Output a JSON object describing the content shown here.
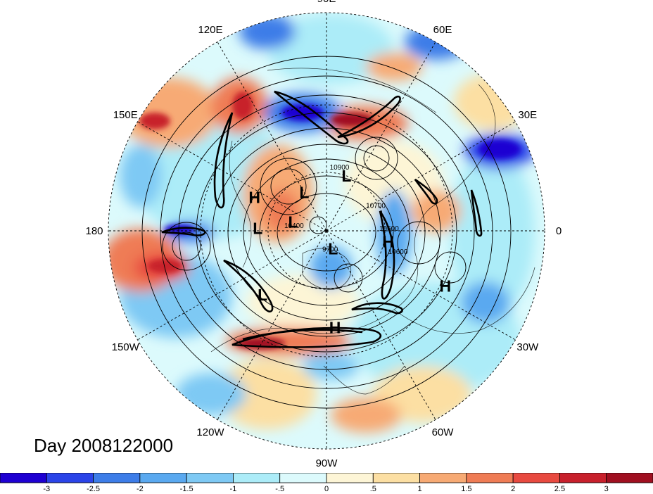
{
  "longitude_labels": [
    {
      "text": "90E",
      "deg": 90
    },
    {
      "text": "60E",
      "deg": 60
    },
    {
      "text": "30E",
      "deg": 30
    },
    {
      "text": "0",
      "deg": 0
    },
    {
      "text": "30W",
      "deg": -30
    },
    {
      "text": "60W",
      "deg": -60
    },
    {
      "text": "90W",
      "deg": -90
    },
    {
      "text": "120W",
      "deg": -120
    },
    {
      "text": "150W",
      "deg": -150
    },
    {
      "text": "180",
      "deg": 180
    },
    {
      "text": "150E",
      "deg": 150
    },
    {
      "text": "120E",
      "deg": 120
    }
  ],
  "pressure_centers": [
    {
      "type": "H",
      "label": "H",
      "lon": 155,
      "lat": 50
    },
    {
      "type": "L",
      "label": "L",
      "lon": 120,
      "lat": 67
    },
    {
      "type": "L",
      "label": "L",
      "lon": 70,
      "lat": 60
    },
    {
      "type": "L",
      "label": "L",
      "lon": 178,
      "lat": 55
    },
    {
      "type": "L",
      "label": "L",
      "lon": 165,
      "lat": 72
    },
    {
      "type": "H",
      "label": "H",
      "lon": -10,
      "lat": 58
    },
    {
      "type": "L",
      "label": "L",
      "lon": -70,
      "lat": 80
    },
    {
      "type": "L",
      "label": "L",
      "lon": -135,
      "lat": 45
    },
    {
      "type": "H",
      "label": "H",
      "lon": -25,
      "lat": 28
    },
    {
      "type": "H",
      "label": "H",
      "lon": -85,
      "lat": 42
    }
  ],
  "contour_labels": [
    {
      "text": "10900",
      "lon": 78,
      "lat": 58
    },
    {
      "text": "10700",
      "lon": 25,
      "lat": 62
    },
    {
      "text": "10600",
      "lon": 0,
      "lat": 58
    },
    {
      "text": "10600",
      "lon": -18,
      "lat": 52
    },
    {
      "text": "10400",
      "lon": 175,
      "lat": 73
    },
    {
      "text": "9700",
      "lon": -80,
      "lat": 79
    }
  ],
  "day_label": "Day 2008122000",
  "colorbar": {
    "colors": [
      "#1e00d2",
      "#2b44e8",
      "#3d7de8",
      "#5aa9f0",
      "#7ec9f4",
      "#acecf8",
      "#dcfafc",
      "#fdf5d6",
      "#fcdfa3",
      "#f7aa74",
      "#ef7c55",
      "#e84a40",
      "#c8202c",
      "#a00f20"
    ],
    "tick_labels": [
      "-3",
      "-2.5",
      "-2",
      "-1.5",
      "-1",
      "-.5",
      "0",
      ".5",
      "1",
      "1.5",
      "2",
      "2.5",
      "3"
    ]
  }
}
